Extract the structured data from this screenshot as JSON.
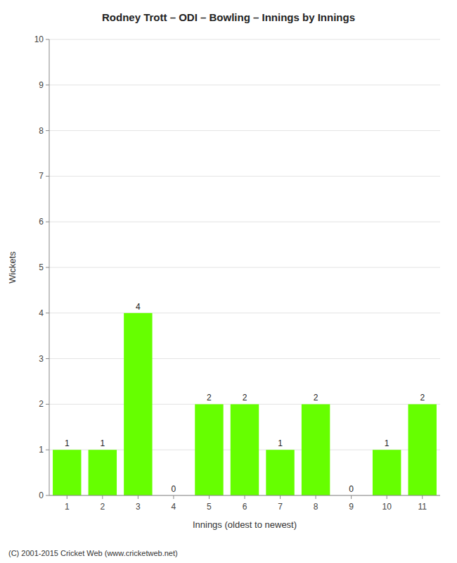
{
  "chart_data": {
    "type": "bar",
    "title": "Rodney Trott – ODI – Bowling – Innings by Innings",
    "x_label": "Innings (oldest to newest)",
    "y_label": "Wickets",
    "categories": [
      "1",
      "2",
      "3",
      "4",
      "5",
      "6",
      "7",
      "8",
      "9",
      "10",
      "11"
    ],
    "values": [
      1,
      1,
      4,
      0,
      2,
      2,
      1,
      2,
      0,
      1,
      2
    ],
    "color": "#66ff00",
    "ylim": [
      0,
      10
    ],
    "yticks": [
      0,
      1,
      2,
      3,
      4,
      5,
      6,
      7,
      8,
      9,
      10
    ],
    "grid": true,
    "data_labels": true,
    "footer": "(C) 2001-2015 Cricket Web (www.cricketweb.net)"
  }
}
